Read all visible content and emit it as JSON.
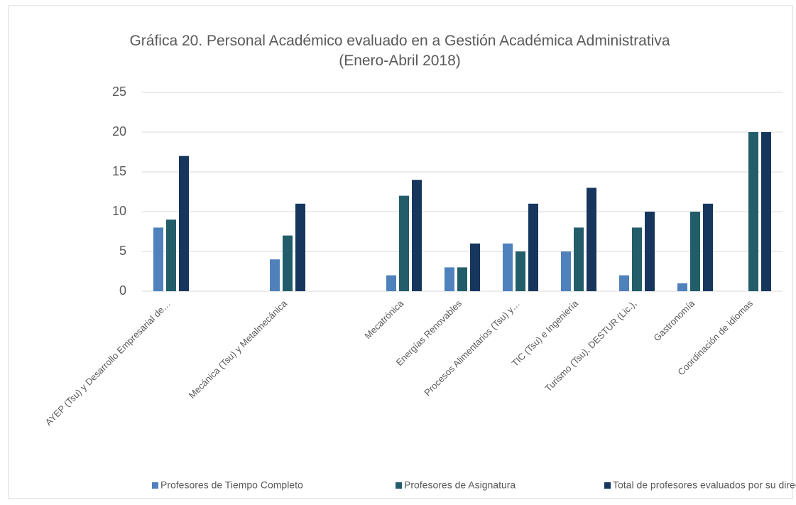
{
  "chart_data": {
    "type": "bar",
    "title": "Gráfica 20. Personal Académico evaluado en a Gestión Académica Administrativa",
    "subtitle": "(Enero-Abril 2018)",
    "categories": [
      "AYEP (Tsu) y Desarrollo Empresarial de…",
      null,
      "Mecánica (Tsu) y Metalmecánica",
      null,
      "Mecatrónica",
      "Energías Renovables",
      "Procesos Alimentarios (Tsu) y…",
      "TIC (Tsu) e Ingeniería",
      "Turismo (Tsu),  DESTUR (Lic.),",
      "Gastronomía",
      "Coordinación de idiomas"
    ],
    "series": [
      {
        "name": "Profesores de Tiempo Completo",
        "color": "#4f81bd",
        "values": [
          8,
          null,
          4,
          null,
          2,
          3,
          6,
          5,
          2,
          1,
          null
        ]
      },
      {
        "name": "Profesores de Asignatura",
        "color": "#235d6a",
        "values": [
          9,
          null,
          7,
          null,
          12,
          3,
          5,
          8,
          8,
          10,
          20
        ]
      },
      {
        "name": "Total de profesores evaluados por su director",
        "color": "#17365d",
        "values": [
          17,
          null,
          11,
          null,
          14,
          6,
          11,
          13,
          10,
          11,
          20
        ]
      }
    ],
    "ylim": [
      0,
      25
    ],
    "yticks": [
      0,
      5,
      10,
      15,
      20,
      25
    ],
    "grid": true,
    "legend": "bottom"
  }
}
